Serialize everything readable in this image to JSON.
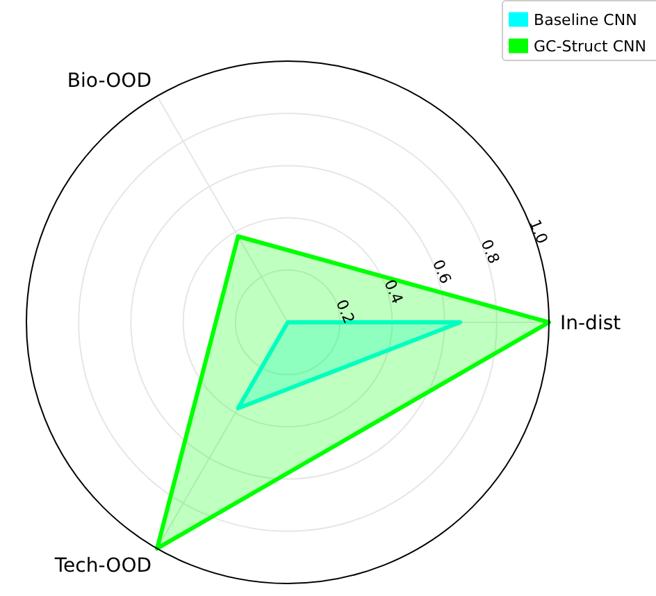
{
  "chart_data": {
    "type": "radar",
    "categories": [
      "In-dist",
      "Tech-OOD",
      "Bio-OOD"
    ],
    "series": [
      {
        "name": "Baseline CNN",
        "color": "#00ffff",
        "values": [
          0.66,
          0.38,
          0
        ]
      },
      {
        "name": "GC-Struct CNN",
        "color": "#00ff00",
        "values": [
          1.0,
          1.0,
          0.38
        ]
      }
    ],
    "ylim": [
      0,
      1
    ],
    "yticks": [
      0.2,
      0.4,
      0.6,
      0.8,
      {
        "value": 1,
        "label": "1.0"
      }
    ],
    "grid": true,
    "legend": "top right"
  }
}
